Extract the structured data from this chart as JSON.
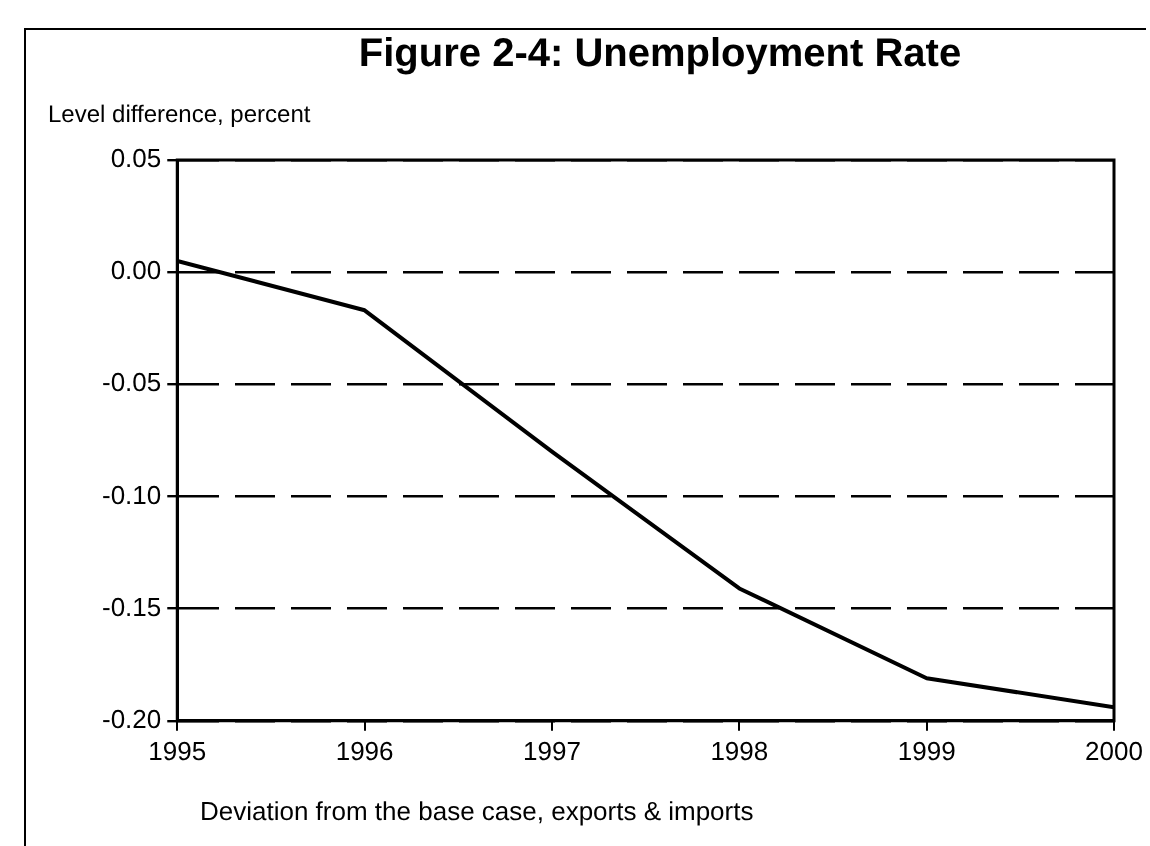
{
  "chart_data": {
    "type": "line",
    "title": "Figure 2-4: Unemployment Rate",
    "ylabel": "Level difference, percent",
    "xlabel": "Deviation from the base case, exports & imports",
    "x": [
      1995,
      1996,
      1997,
      1998,
      1999,
      2000
    ],
    "series": [
      {
        "color": "#000000",
        "values": [
          0.005,
          -0.017,
          -0.08,
          -0.141,
          -0.181,
          -0.194
        ]
      }
    ],
    "xlim": [
      1995,
      2000
    ],
    "xticks": [
      1995,
      1996,
      1997,
      1998,
      1999,
      2000
    ],
    "ylim": [
      -0.2,
      0.05
    ],
    "yticks": [
      {
        "value": 0.05,
        "label": "0.05"
      },
      {
        "value": 0,
        "label": "0.00"
      },
      {
        "value": -0.05,
        "label": "-0.05"
      },
      {
        "value": -0.1,
        "label": "-0.10"
      },
      {
        "value": -0.15,
        "label": "-0.15"
      },
      {
        "value": -0.2,
        "label": "-0.20"
      }
    ],
    "grid": "y",
    "legend": false,
    "marker": "none",
    "line_style": "solid"
  }
}
